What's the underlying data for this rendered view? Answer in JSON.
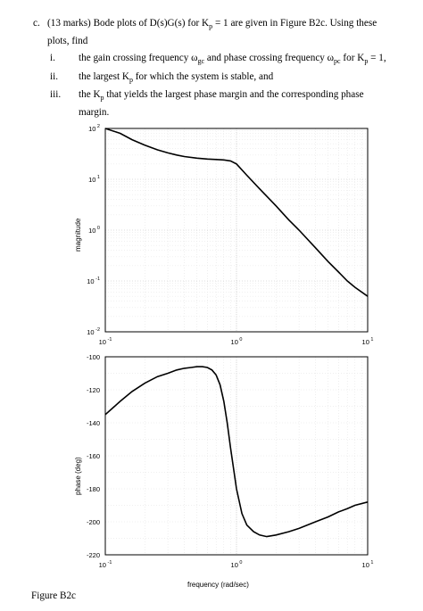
{
  "question": {
    "part_label": "c.",
    "intro_line1": "(13 marks) Bode plots of D(s)G(s) for K",
    "intro_sub": "p",
    "intro_rest": " = 1 are given in Figure B2c. Using these",
    "intro_line2": "plots, find",
    "items": [
      {
        "num": "i.",
        "text": "the gain crossing frequency ω",
        "sub1": "gc",
        "mid": " and phase crossing frequency ω",
        "sub2": "pc",
        "end": " for K",
        "sub3": "p",
        "tail": " = 1,"
      },
      {
        "num": "ii.",
        "text": "the largest K",
        "sub1": "p",
        "tail": " for which the system is stable, and"
      },
      {
        "num": "iii.",
        "text": "the K",
        "sub1": "p",
        "tail": " that yields the largest phase margin and the corresponding phase",
        "line2": "margin."
      }
    ]
  },
  "figure_caption": "Figure B2c",
  "chart_data": [
    {
      "type": "line",
      "ylabel": "magnitude",
      "xlabel": "",
      "xscale": "log",
      "yscale": "log",
      "xlim": [
        0.1,
        10
      ],
      "ylim": [
        0.01,
        100
      ],
      "x_ticks": [
        "10^-1",
        "10^0",
        "10^1"
      ],
      "y_ticks": [
        "10^-2",
        "10^-1",
        "10^0",
        "10^1",
        "10^2"
      ],
      "grid": true,
      "series": [
        {
          "x": [
            0.1,
            0.13,
            0.16,
            0.2,
            0.25,
            0.3,
            0.35,
            0.4,
            0.5,
            0.6,
            0.7,
            0.8,
            0.9,
            1.0,
            1.2,
            1.5,
            2,
            2.5,
            3,
            4,
            5,
            6,
            7,
            8,
            10
          ],
          "y": [
            110,
            80,
            60,
            47,
            38,
            33,
            30,
            28,
            26,
            25,
            24.5,
            24,
            23,
            20,
            12,
            6.5,
            3.0,
            1.6,
            1.0,
            0.45,
            0.24,
            0.15,
            0.1,
            0.075,
            0.05
          ]
        }
      ]
    },
    {
      "type": "line",
      "ylabel": "phase (deg)",
      "xlabel": "frequency (rad/sec)",
      "xscale": "log",
      "xlim": [
        0.1,
        10
      ],
      "ylim": [
        -220,
        -100
      ],
      "x_ticks": [
        "10^-1",
        "10^0",
        "10^1"
      ],
      "y_ticks": [
        "-100",
        "-120",
        "-140",
        "-160",
        "-180",
        "-200",
        "-220"
      ],
      "grid": true,
      "series": [
        {
          "x": [
            0.1,
            0.13,
            0.16,
            0.2,
            0.25,
            0.3,
            0.35,
            0.4,
            0.45,
            0.5,
            0.55,
            0.6,
            0.65,
            0.7,
            0.75,
            0.8,
            0.85,
            0.9,
            1.0,
            1.1,
            1.2,
            1.35,
            1.5,
            1.7,
            2.0,
            2.5,
            3,
            4,
            5,
            6,
            7,
            8,
            10
          ],
          "y": [
            -135,
            -127,
            -121,
            -116,
            -112,
            -110,
            -108,
            -107,
            -106.5,
            -106,
            -106,
            -106.5,
            -108,
            -111,
            -117,
            -127,
            -140,
            -155,
            -180,
            -195,
            -202,
            -206,
            -208,
            -209,
            -208,
            -206,
            -204,
            -200,
            -197,
            -194,
            -192,
            -190,
            -188
          ]
        }
      ]
    }
  ]
}
